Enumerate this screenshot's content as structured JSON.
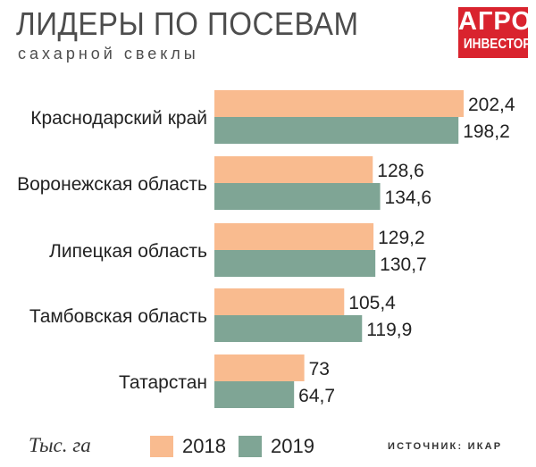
{
  "header": {
    "title": "ЛИДЕРЫ ПО ПОСЕВАМ",
    "subtitle": "сахарной свеклы",
    "logo_line1": "АГРО",
    "logo_line2": "ИНВЕСТОР"
  },
  "footer": {
    "unit": "Тыс. га",
    "source": "ИСТОЧНИК: ИКАР"
  },
  "colors": {
    "s2018": "#f9bb8f",
    "s2019": "#7fa595",
    "logo_bg": "#d9232e"
  },
  "chart_data": {
    "type": "bar",
    "orientation": "horizontal",
    "title": "ЛИДЕРЫ ПО ПОСЕВАМ",
    "subtitle": "сахарной свеклы",
    "unit": "Тыс. га",
    "categories": [
      "Краснодарский край",
      "Воронежская область",
      "Липецкая область",
      "Тамбовская область",
      "Татарстан"
    ],
    "series": [
      {
        "name": "2018",
        "values": [
          202.4,
          128.6,
          129.2,
          105.4,
          73
        ],
        "labels": [
          "202,4",
          "128,6",
          "129,2",
          "105,4",
          "73"
        ]
      },
      {
        "name": "2019",
        "values": [
          198.2,
          134.6,
          130.7,
          119.9,
          64.7
        ],
        "labels": [
          "198,2",
          "134,6",
          "130,7",
          "119,9",
          "64,7"
        ]
      }
    ],
    "legend_position": "bottom",
    "grid": false
  }
}
